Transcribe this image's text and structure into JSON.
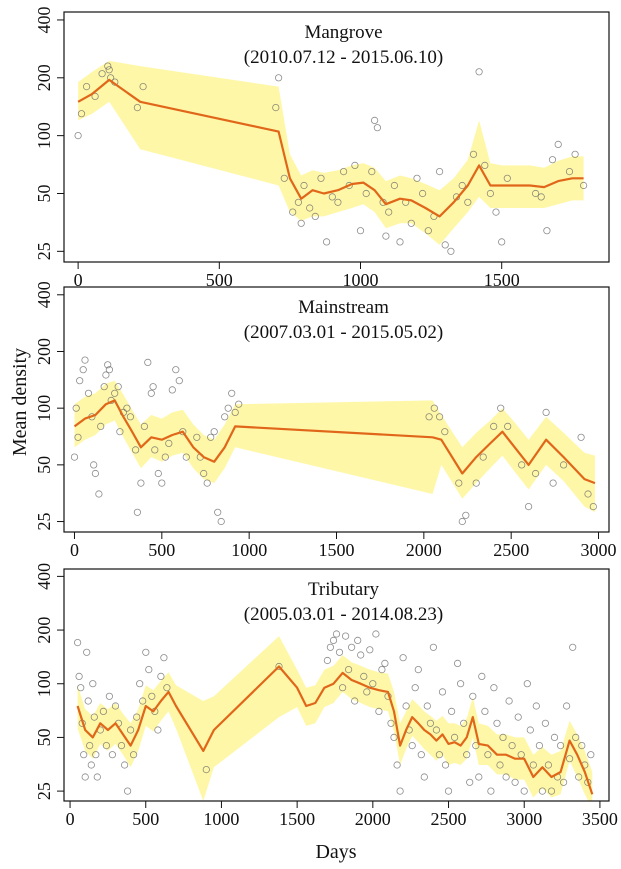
{
  "colors": {
    "line": "#E0661A",
    "band": "#FFF7A8",
    "points": "#666666",
    "frame": "#111111"
  },
  "figure": {
    "xlabel": "Days",
    "ylabel": "Mean density"
  },
  "chart_data": [
    {
      "type": "line",
      "title": "Mangrove",
      "subtitle": "(2010.07.12 - 2015.06.10)",
      "y_scale": "log",
      "ylim": [
        22,
        440
      ],
      "yticks": [
        25,
        50,
        100,
        200,
        400
      ],
      "xlim": [
        -50,
        1880
      ],
      "xticks": [
        0,
        500,
        1000,
        1500
      ],
      "series": [
        {
          "x": [
            0,
            50,
            110,
            220,
            710,
            750,
            790,
            830,
            870,
            920,
            970,
            1010,
            1050,
            1090,
            1140,
            1180,
            1230,
            1280,
            1330,
            1380,
            1420,
            1460,
            1500,
            1550,
            1600,
            1650,
            1700,
            1750,
            1790
          ],
          "y": [
            150,
            165,
            195,
            150,
            105,
            60,
            47,
            52,
            50,
            52,
            56,
            57,
            52,
            44,
            47,
            46,
            42,
            38,
            45,
            55,
            70,
            55,
            55,
            55,
            55,
            54,
            58,
            60,
            60
          ]
        }
      ],
      "band": {
        "x": [
          0,
          50,
          110,
          220,
          710,
          750,
          790,
          830,
          870,
          920,
          970,
          1010,
          1050,
          1090,
          1140,
          1180,
          1230,
          1280,
          1330,
          1380,
          1420,
          1460,
          1500,
          1550,
          1600,
          1650,
          1700,
          1750,
          1790
        ],
        "lower": [
          120,
          130,
          150,
          85,
          55,
          40,
          36,
          38,
          38,
          40,
          42,
          44,
          40,
          33,
          35,
          35,
          31,
          27,
          33,
          40,
          48,
          42,
          42,
          42,
          42,
          42,
          44,
          46,
          46
        ],
        "upper": [
          190,
          215,
          245,
          230,
          180,
          80,
          62,
          66,
          64,
          66,
          70,
          72,
          68,
          58,
          62,
          60,
          56,
          52,
          60,
          75,
          120,
          72,
          70,
          70,
          70,
          68,
          74,
          78,
          78
        ]
      },
      "points": {
        "x": [
          0,
          12,
          30,
          60,
          85,
          105,
          110,
          115,
          130,
          210,
          230,
          700,
          710,
          730,
          760,
          780,
          790,
          800,
          820,
          840,
          860,
          880,
          900,
          920,
          940,
          960,
          980,
          1000,
          1020,
          1040,
          1050,
          1060,
          1080,
          1090,
          1100,
          1120,
          1140,
          1160,
          1180,
          1200,
          1220,
          1240,
          1260,
          1280,
          1300,
          1320,
          1340,
          1360,
          1380,
          1400,
          1420,
          1440,
          1460,
          1480,
          1500,
          1520,
          1620,
          1640,
          1660,
          1680,
          1700,
          1740,
          1760,
          1790
        ],
        "y": [
          100,
          130,
          180,
          160,
          210,
          230,
          220,
          200,
          190,
          140,
          180,
          140,
          200,
          60,
          40,
          45,
          35,
          55,
          42,
          38,
          60,
          28,
          48,
          45,
          65,
          55,
          70,
          32,
          50,
          65,
          120,
          110,
          45,
          30,
          40,
          55,
          28,
          45,
          35,
          60,
          50,
          32,
          38,
          65,
          27,
          25,
          48,
          55,
          45,
          80,
          215,
          70,
          50,
          40,
          28,
          60,
          50,
          48,
          32,
          75,
          90,
          65,
          80,
          55
        ]
      }
    },
    {
      "type": "line",
      "title": "Mainstream",
      "subtitle": "(2007.03.01 - 2015.05.02)",
      "y_scale": "log",
      "ylim": [
        22,
        440
      ],
      "yticks": [
        25,
        50,
        100,
        200,
        400
      ],
      "xlim": [
        -60,
        3060
      ],
      "xticks": [
        0,
        500,
        1000,
        1500,
        2000,
        2500,
        3000
      ],
      "series": [
        {
          "x": [
            0,
            60,
            120,
            180,
            230,
            280,
            330,
            380,
            440,
            500,
            560,
            620,
            680,
            740,
            800,
            860,
            920,
            2050,
            2100,
            2220,
            2300,
            2380,
            2450,
            2520,
            2600,
            2700,
            2800,
            2920,
            2980
          ],
          "y": [
            80,
            88,
            92,
            105,
            110,
            90,
            75,
            62,
            70,
            68,
            72,
            75,
            62,
            55,
            52,
            62,
            80,
            70,
            68,
            45,
            55,
            65,
            75,
            62,
            50,
            68,
            55,
            42,
            40
          ]
        }
      ],
      "band": {
        "x": [
          0,
          60,
          120,
          180,
          230,
          280,
          330,
          380,
          440,
          500,
          560,
          620,
          680,
          740,
          800,
          860,
          920,
          2050,
          2100,
          2220,
          2300,
          2380,
          2450,
          2520,
          2600,
          2700,
          2800,
          2920,
          2980
        ],
        "lower": [
          62,
          68,
          72,
          82,
          86,
          70,
          58,
          48,
          55,
          52,
          56,
          58,
          48,
          42,
          40,
          48,
          62,
          35,
          50,
          33,
          40,
          48,
          56,
          46,
          37,
          50,
          41,
          30,
          28
        ],
        "upper": [
          105,
          115,
          120,
          135,
          140,
          118,
          98,
          82,
          92,
          88,
          95,
          98,
          82,
          72,
          68,
          82,
          105,
          110,
          92,
          62,
          74,
          86,
          100,
          84,
          68,
          90,
          74,
          58,
          56
        ]
      },
      "points": {
        "x": [
          0,
          10,
          20,
          30,
          50,
          60,
          80,
          100,
          110,
          120,
          140,
          150,
          170,
          180,
          190,
          200,
          210,
          230,
          250,
          260,
          280,
          300,
          320,
          350,
          360,
          380,
          400,
          420,
          440,
          450,
          460,
          480,
          500,
          520,
          540,
          560,
          580,
          600,
          620,
          640,
          700,
          720,
          740,
          760,
          780,
          800,
          820,
          840,
          860,
          880,
          900,
          920,
          940,
          2030,
          2060,
          2090,
          2120,
          2200,
          2220,
          2240,
          2300,
          2340,
          2400,
          2440,
          2480,
          2560,
          2600,
          2640,
          2700,
          2740,
          2800,
          2900,
          2940,
          2970
        ],
        "y": [
          55,
          100,
          70,
          140,
          160,
          180,
          120,
          90,
          50,
          45,
          35,
          80,
          130,
          150,
          170,
          160,
          110,
          120,
          130,
          75,
          95,
          100,
          90,
          60,
          28,
          40,
          80,
          175,
          120,
          130,
          60,
          45,
          40,
          55,
          65,
          125,
          160,
          140,
          75,
          55,
          70,
          55,
          45,
          40,
          70,
          75,
          28,
          25,
          90,
          100,
          120,
          95,
          105,
          90,
          100,
          90,
          75,
          40,
          25,
          27,
          40,
          55,
          80,
          100,
          80,
          50,
          30,
          45,
          95,
          40,
          50,
          70,
          35,
          30
        ]
      }
    },
    {
      "type": "line",
      "title": "Tributary",
      "subtitle": "(2005.03.01 - 2014.08.23)",
      "y_scale": "log",
      "ylim": [
        22,
        440
      ],
      "yticks": [
        25,
        50,
        100,
        200,
        400
      ],
      "xlim": [
        -40,
        3560
      ],
      "xticks": [
        0,
        500,
        1000,
        1500,
        2000,
        2500,
        3000,
        3500
      ],
      "series": [
        {
          "x": [
            50,
            100,
            150,
            200,
            250,
            300,
            350,
            400,
            450,
            500,
            550,
            600,
            650,
            700,
            880,
            950,
            1380,
            1500,
            1560,
            1620,
            1680,
            1740,
            1800,
            1860,
            1920,
            1980,
            2040,
            2100,
            2140,
            2180,
            2220,
            2260,
            2300,
            2340,
            2380,
            2420,
            2460,
            2500,
            2540,
            2580,
            2620,
            2660,
            2700,
            2760,
            2820,
            2880,
            2940,
            3000,
            3060,
            3120,
            3180,
            3240,
            3300,
            3350,
            3400,
            3450
          ],
          "y": [
            75,
            55,
            50,
            60,
            55,
            60,
            52,
            45,
            55,
            75,
            70,
            80,
            90,
            75,
            42,
            55,
            125,
            95,
            75,
            78,
            95,
            100,
            115,
            105,
            100,
            95,
            92,
            90,
            70,
            45,
            55,
            65,
            60,
            55,
            52,
            48,
            52,
            46,
            47,
            45,
            50,
            65,
            46,
            45,
            40,
            40,
            38,
            38,
            30,
            34,
            30,
            32,
            48,
            40,
            32,
            24
          ]
        }
      ],
      "band": {
        "x": [
          50,
          100,
          150,
          200,
          250,
          300,
          350,
          400,
          450,
          500,
          550,
          600,
          650,
          700,
          880,
          950,
          1380,
          1500,
          1560,
          1620,
          1680,
          1740,
          1800,
          1860,
          1920,
          1980,
          2040,
          2100,
          2140,
          2180,
          2220,
          2260,
          2300,
          2340,
          2380,
          2420,
          2460,
          2500,
          2540,
          2580,
          2620,
          2660,
          2700,
          2760,
          2820,
          2880,
          2940,
          3000,
          3060,
          3120,
          3180,
          3240,
          3300,
          3350,
          3400,
          3450
        ],
        "lower": [
          56,
          42,
          38,
          46,
          42,
          46,
          40,
          34,
          42,
          58,
          54,
          62,
          70,
          56,
          22,
          34,
          65,
          74,
          58,
          60,
          74,
          78,
          90,
          82,
          78,
          74,
          72,
          70,
          54,
          35,
          43,
          51,
          47,
          43,
          40,
          37,
          40,
          35,
          36,
          35,
          38,
          50,
          35,
          35,
          31,
          31,
          29,
          29,
          23,
          26,
          23,
          24,
          37,
          30,
          24,
          20
        ],
        "upper": [
          98,
          72,
          66,
          78,
          72,
          78,
          68,
          60,
          72,
          98,
          92,
          104,
          116,
          98,
          80,
          85,
          185,
          120,
          95,
          98,
          120,
          126,
          145,
          132,
          126,
          120,
          116,
          114,
          90,
          60,
          70,
          82,
          76,
          70,
          66,
          62,
          66,
          60,
          60,
          58,
          64,
          84,
          60,
          58,
          52,
          52,
          50,
          50,
          40,
          44,
          40,
          42,
          62,
          52,
          42,
          32
        ]
      },
      "points": {
        "x": [
          50,
          60,
          70,
          80,
          90,
          100,
          110,
          120,
          130,
          140,
          150,
          160,
          170,
          180,
          200,
          220,
          240,
          260,
          280,
          300,
          320,
          340,
          360,
          380,
          400,
          420,
          440,
          460,
          480,
          500,
          520,
          540,
          560,
          580,
          600,
          620,
          640,
          900,
          1380,
          1700,
          1720,
          1740,
          1760,
          1780,
          1800,
          1820,
          1840,
          1860,
          1880,
          1900,
          1920,
          1940,
          1960,
          1980,
          2000,
          2020,
          2040,
          2060,
          2080,
          2100,
          2120,
          2140,
          2160,
          2180,
          2200,
          2220,
          2240,
          2260,
          2280,
          2300,
          2320,
          2340,
          2360,
          2380,
          2400,
          2420,
          2440,
          2460,
          2480,
          2500,
          2520,
          2540,
          2560,
          2580,
          2600,
          2620,
          2640,
          2660,
          2680,
          2700,
          2720,
          2740,
          2760,
          2780,
          2800,
          2820,
          2840,
          2860,
          2880,
          2900,
          2920,
          2940,
          2960,
          2980,
          3000,
          3020,
          3040,
          3060,
          3080,
          3100,
          3120,
          3140,
          3160,
          3180,
          3200,
          3220,
          3240,
          3260,
          3280,
          3300,
          3320,
          3340,
          3360,
          3380,
          3400,
          3420,
          3440
        ],
        "y": [
          170,
          110,
          95,
          60,
          40,
          30,
          150,
          80,
          45,
          35,
          100,
          65,
          40,
          30,
          55,
          70,
          45,
          85,
          40,
          75,
          60,
          45,
          35,
          25,
          55,
          40,
          65,
          100,
          80,
          150,
          120,
          85,
          70,
          55,
          110,
          140,
          95,
          33,
          125,
          135,
          160,
          175,
          190,
          150,
          95,
          185,
          120,
          160,
          80,
          175,
          145,
          110,
          90,
          155,
          100,
          190,
          70,
          120,
          130,
          85,
          60,
          50,
          35,
          25,
          140,
          75,
          55,
          45,
          95,
          120,
          40,
          30,
          75,
          60,
          160,
          55,
          40,
          90,
          35,
          25,
          70,
          50,
          130,
          100,
          60,
          40,
          28,
          85,
          45,
          30,
          110,
          70,
          40,
          25,
          95,
          60,
          35,
          50,
          30,
          80,
          45,
          28,
          65,
          40,
          25,
          100,
          55,
          35,
          75,
          45,
          25,
          60,
          35,
          25,
          50,
          30,
          45,
          28,
          75,
          38,
          160,
          50,
          30,
          45,
          35,
          28,
          40
        ]
      }
    }
  ]
}
